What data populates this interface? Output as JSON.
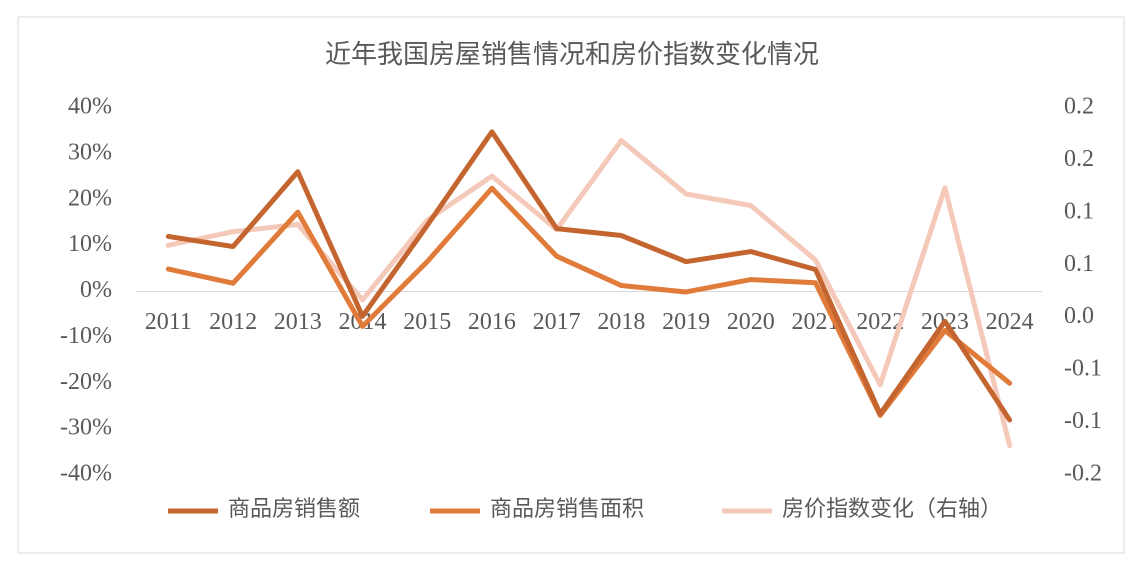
{
  "chart_data": {
    "type": "line",
    "title": "近年我国房屋销售情况和房价指数变化情况",
    "categories": [
      "2011",
      "2012",
      "2013",
      "2014",
      "2015",
      "2016",
      "2017",
      "2018",
      "2019",
      "2020",
      "2021",
      "2022",
      "2023",
      "2024"
    ],
    "ylim": [
      -40,
      40
    ],
    "yticks": [
      {
        "value": 40,
        "label": "40%"
      },
      {
        "value": 30,
        "label": "30%"
      },
      {
        "value": 20,
        "label": "20%"
      },
      {
        "value": 10,
        "label": "10%"
      },
      {
        "value": 0,
        "label": "0%"
      },
      {
        "value": -10,
        "label": "-10%"
      },
      {
        "value": -20,
        "label": "-20%"
      },
      {
        "value": -30,
        "label": "-30%"
      },
      {
        "value": -40,
        "label": "-40%"
      }
    ],
    "y2lim": [
      -0.15,
      0.2
    ],
    "y2ticks": [
      {
        "value": 0.2,
        "label": "0.2"
      },
      {
        "value": 0.15,
        "label": "0.2"
      },
      {
        "value": 0.1,
        "label": "0.1"
      },
      {
        "value": 0.05,
        "label": "0.1"
      },
      {
        "value": 0,
        "label": "0.0"
      },
      {
        "value": -0.05,
        "label": "-0.1"
      },
      {
        "value": -0.1,
        "label": "-0.1"
      },
      {
        "value": -0.15,
        "label": "-0.2"
      }
    ],
    "legend": "bottom",
    "series": [
      {
        "name": "商品房销售额",
        "color": "#c4652f",
        "values": [
          12.0,
          9.8,
          26.1,
          -5.4,
          14.4,
          34.8,
          13.7,
          12.2,
          6.5,
          8.7,
          4.8,
          -26.7,
          -6.5,
          -28.0
        ]
      },
      {
        "name": "商品房销售面积",
        "color": "#e07b39",
        "values": [
          4.9,
          1.8,
          17.3,
          -7.6,
          6.5,
          22.5,
          7.7,
          1.3,
          -0.1,
          2.6,
          1.9,
          -27.0,
          -8.5,
          -20.0
        ]
      },
      {
        "name": "房价指数变化（右轴）",
        "color": "#f5c9b9",
        "axis": "y2",
        "values": [
          0.069,
          0.082,
          0.089,
          0.017,
          0.093,
          0.135,
          0.084,
          0.169,
          0.118,
          0.107,
          0.055,
          -0.064,
          0.124,
          -0.122
        ]
      }
    ]
  }
}
